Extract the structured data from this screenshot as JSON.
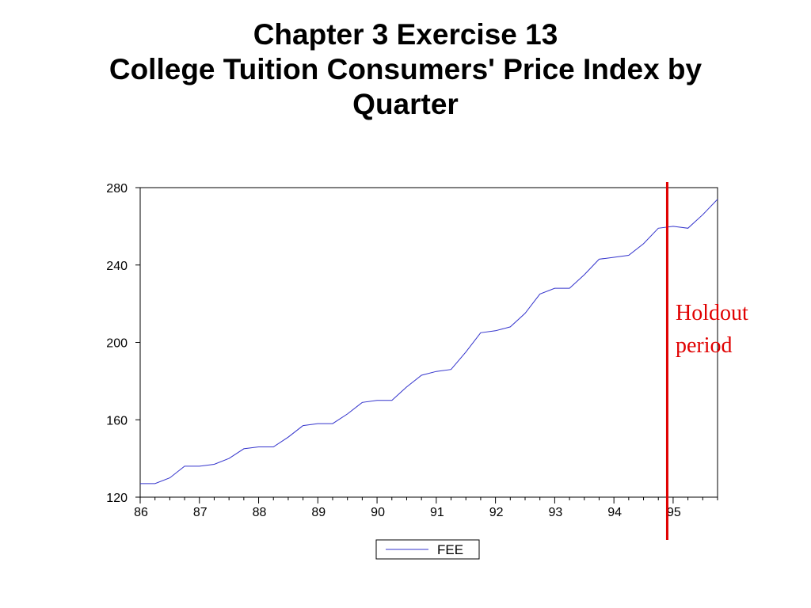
{
  "slide": {
    "title_line1": "Chapter 3 Exercise 13",
    "title_line2": "College Tuition Consumers' Price Index by",
    "title_line3": "Quarter"
  },
  "chart_data": {
    "type": "line",
    "title": "Chapter 3 Exercise 13 College Tuition Consumers' Price Index by Quarter",
    "xlabel": "",
    "ylabel": "",
    "x_tick_labels": [
      "86",
      "87",
      "88",
      "89",
      "90",
      "91",
      "92",
      "93",
      "94",
      "95"
    ],
    "y_ticks": [
      120,
      160,
      200,
      240,
      280
    ],
    "ylim": [
      120,
      280
    ],
    "xlim": [
      1986,
      1995.75
    ],
    "grid": false,
    "legend_position": "bottom-center",
    "series": [
      {
        "name": "FEE",
        "color": "#3333cc",
        "x": [
          1986.0,
          1986.25,
          1986.5,
          1986.75,
          1987.0,
          1987.25,
          1987.5,
          1987.75,
          1988.0,
          1988.25,
          1988.5,
          1988.75,
          1989.0,
          1989.25,
          1989.5,
          1989.75,
          1990.0,
          1990.25,
          1990.5,
          1990.75,
          1991.0,
          1991.25,
          1991.5,
          1991.75,
          1992.0,
          1992.25,
          1992.5,
          1992.75,
          1993.0,
          1993.25,
          1993.5,
          1993.75,
          1994.0,
          1994.25,
          1994.5,
          1994.75,
          1995.0,
          1995.25,
          1995.5,
          1995.75
        ],
        "values": [
          127,
          127,
          130,
          136,
          136,
          137,
          140,
          145,
          146,
          146,
          151,
          157,
          158,
          158,
          163,
          169,
          170,
          170,
          177,
          183,
          185,
          186,
          195,
          205,
          206,
          208,
          215,
          225,
          228,
          228,
          235,
          243,
          244,
          245,
          251,
          259,
          260,
          259,
          266,
          274
        ]
      }
    ],
    "annotation": {
      "text_line1": "Holdout",
      "text_line2": "period",
      "color": "#e00000",
      "marker_x": 1994.9
    }
  }
}
